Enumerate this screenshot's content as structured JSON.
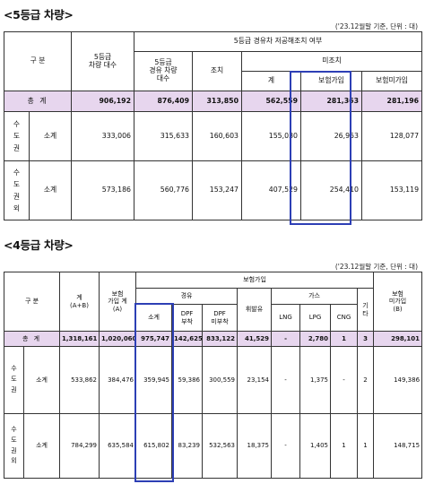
{
  "section1": {
    "title": "<5등급 차량>",
    "unit": "('23.12월말 기준, 단위 : 대)",
    "headers": {
      "gubun": "구 분",
      "total_vehicles": "5등급\n차량 대수",
      "group": "5등급 경유차 저공해조치 여부",
      "diesel_vehicles": "5등급\n경유 차량\n대수",
      "done": "조치",
      "notdone": "미조치",
      "sum": "계",
      "insured": "보험가입",
      "uninsured": "보험미가입"
    },
    "total": {
      "label": "총 계",
      "values": [
        "906,192",
        "876,409",
        "313,850",
        "562,559",
        "281,363",
        "281,196"
      ]
    },
    "rows": [
      {
        "region": "수\n도\n권",
        "sub": "소계",
        "values": [
          "333,006",
          "315,633",
          "160,603",
          "155,030",
          "26,953",
          "128,077"
        ]
      },
      {
        "region": "수\n도\n권\n외",
        "sub": "소계",
        "values": [
          "573,186",
          "560,776",
          "153,247",
          "407,529",
          "254,410",
          "153,119"
        ]
      }
    ]
  },
  "section2": {
    "title": "<4등급 차량>",
    "unit": "('23.12월말 기준, 단위 : 대)",
    "headers": {
      "gubun": "구 분",
      "total": "계\n(A+B)",
      "insured_total": "보험\n가입 계\n(A)",
      "insured_group": "보험가입",
      "diesel": "경유",
      "subtotal": "소계",
      "dpf_attached": "DPF\n부착",
      "dpf_not": "DPF\n미부착",
      "gasoline": "휘발유",
      "gas": "가스",
      "lng": "LNG",
      "lpg": "LPG",
      "cng": "CNG",
      "etc": "기\n타",
      "uninsured": "보험\n미가입\n(B)"
    },
    "total": {
      "label": "총 계",
      "values": [
        "1,318,161",
        "1,020,060",
        "975,747",
        "142,625",
        "833,122",
        "41,529",
        "-",
        "2,780",
        "1",
        "3",
        "298,101"
      ]
    },
    "rows": [
      {
        "region": "수\n도\n권",
        "sub": "소계",
        "values": [
          "533,862",
          "384,476",
          "359,945",
          "59,386",
          "300,559",
          "23,154",
          "-",
          "1,375",
          "-",
          "2",
          "149,386"
        ]
      },
      {
        "region": "수\n도\n권\n외",
        "sub": "소계",
        "values": [
          "784,299",
          "635,584",
          "615,802",
          "83,239",
          "532,563",
          "18,375",
          "-",
          "1,405",
          "1",
          "1",
          "148,715"
        ]
      }
    ]
  }
}
